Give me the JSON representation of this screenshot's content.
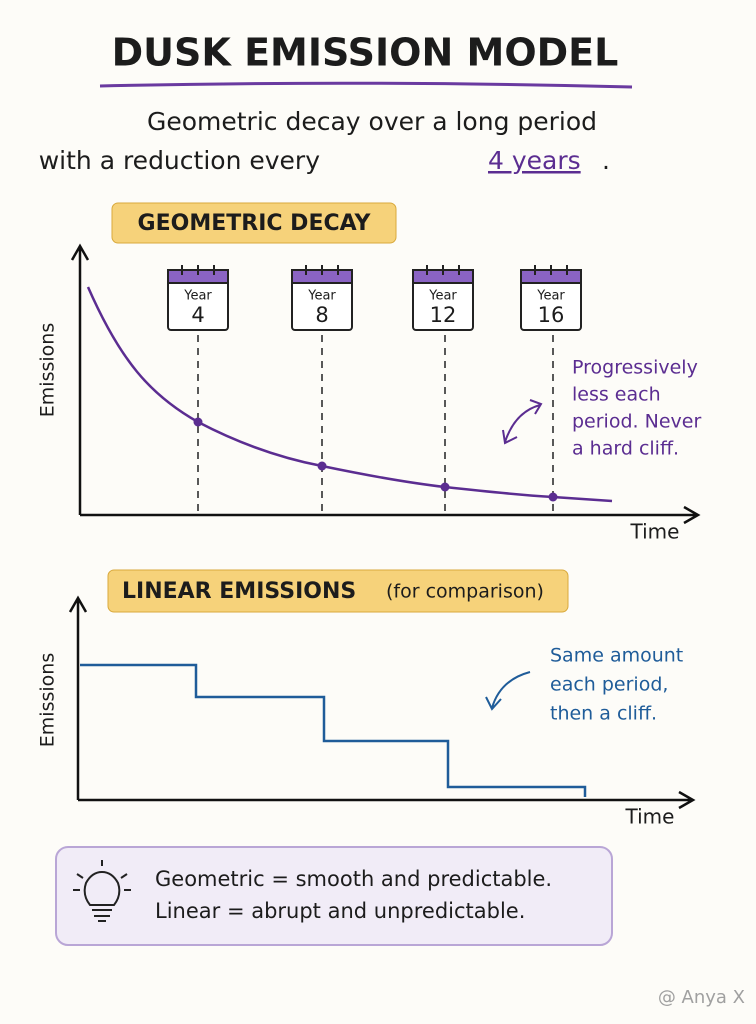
{
  "header": {
    "title": "DUSK EMISSION MODEL",
    "subtitle": {
      "line1": "Geometric decay over a long period",
      "line2_start": "with a reduction every",
      "highlight": "4 years",
      "line2_end": "."
    }
  },
  "geometric": {
    "label": "GEOMETRIC DECAY",
    "y_label": "Emissions",
    "x_label": "Time",
    "calendars": [
      {
        "label": "Year",
        "number": "4"
      },
      {
        "label": "Year",
        "number": "8"
      },
      {
        "label": "Year",
        "number": "12"
      },
      {
        "label": "Year",
        "number": "16"
      }
    ],
    "note": [
      "Progressively",
      "less each",
      "period. Never",
      "a hard cliff."
    ]
  },
  "linear": {
    "label": "LINEAR EMISSIONS",
    "label_note": "(for comparison)",
    "y_label": "Emissions",
    "x_label": "Time",
    "note": [
      "Same amount",
      "each period,",
      "then a cliff."
    ]
  },
  "footer": {
    "lines": [
      "Geometric = smooth and predictable.",
      "Linear = abrupt and unpredictable."
    ]
  },
  "watermark": "@ Anya X"
}
